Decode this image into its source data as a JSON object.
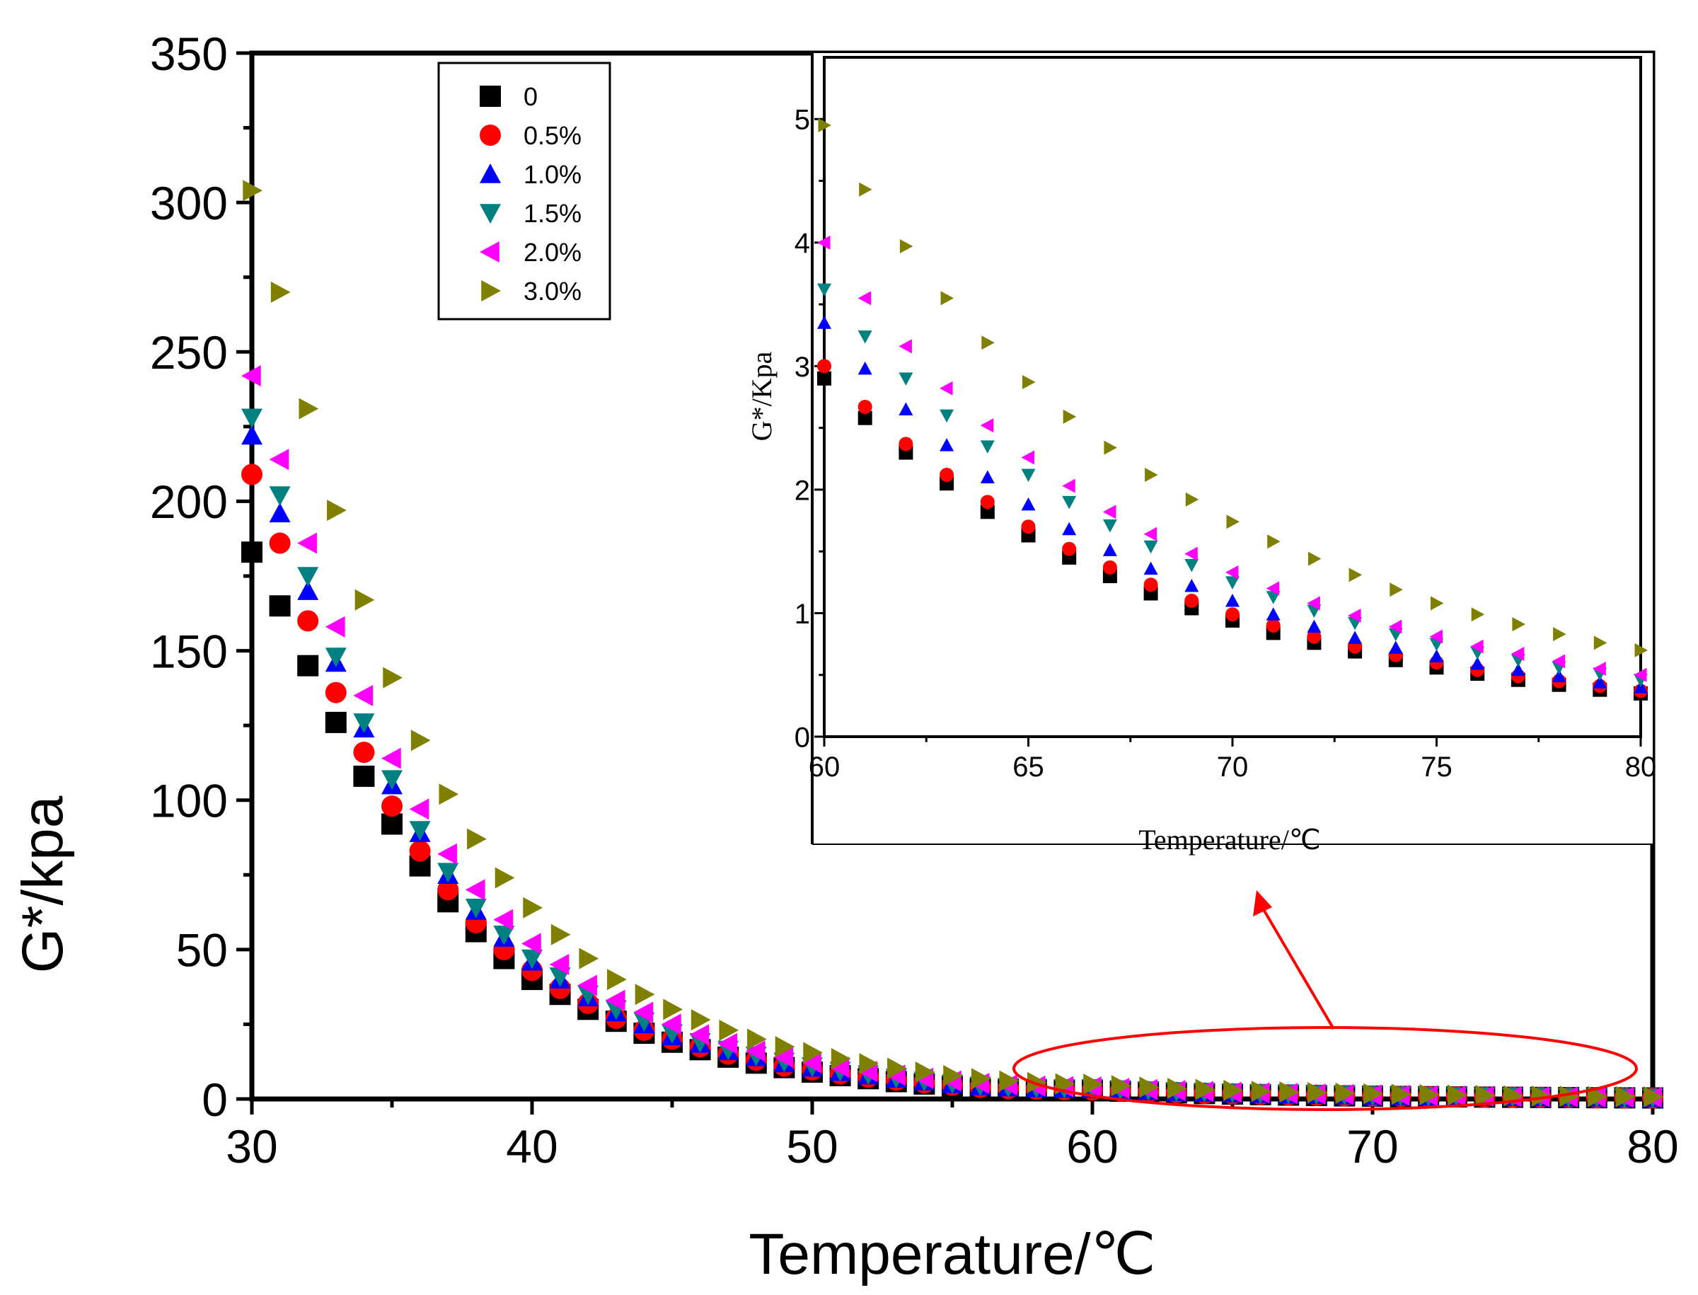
{
  "chart_data": [
    {
      "id": "main",
      "type": "scatter",
      "title": "",
      "xlabel": "Temperature/℃",
      "ylabel": "G*/kpa",
      "xlim": [
        30,
        80
      ],
      "ylim": [
        0,
        350
      ],
      "xticks": [
        "30",
        "40",
        "50",
        "60",
        "70",
        "80"
      ],
      "yticks": [
        "0",
        "50",
        "100",
        "150",
        "200",
        "250",
        "300",
        "350"
      ],
      "legend": {
        "position": "top-left",
        "entries": [
          {
            "label": "0",
            "marker": "square",
            "color": "#000000"
          },
          {
            "label": "0.5%",
            "marker": "circle",
            "color": "#ff0000"
          },
          {
            "label": "1.0%",
            "marker": "triangle-up",
            "color": "#0000ff"
          },
          {
            "label": "1.5%",
            "marker": "triangle-down",
            "color": "#008080"
          },
          {
            "label": "2.0%",
            "marker": "triangle-left",
            "color": "#ff00ff"
          },
          {
            "label": "3.0%",
            "marker": "triangle-right",
            "color": "#808000"
          }
        ]
      },
      "x": [
        30,
        31,
        32,
        33,
        34,
        35,
        36,
        37,
        38,
        39,
        40,
        41,
        42,
        43,
        44,
        45,
        46,
        47,
        48,
        49,
        50,
        51,
        52,
        53,
        54,
        55,
        56,
        57,
        58,
        59,
        60,
        61,
        62,
        63,
        64,
        65,
        66,
        67,
        68,
        69,
        70,
        71,
        72,
        73,
        74,
        75,
        76,
        77,
        78,
        79,
        80
      ],
      "series": [
        {
          "name": "0",
          "marker": "square",
          "color": "#000000",
          "values": [
            183,
            165,
            145,
            126,
            108,
            92,
            78,
            66,
            56,
            47,
            40,
            35,
            30,
            26,
            22,
            19,
            16.5,
            14,
            12,
            10.5,
            9,
            7.8,
            6.8,
            5.8,
            5,
            4.2,
            3.5,
            3.2,
            3.1,
            2.9,
            2.9,
            2.6,
            2.3,
            2.05,
            1.82,
            1.63,
            1.45,
            1.3,
            1.16,
            1.04,
            0.94,
            0.84,
            0.76,
            0.69,
            0.62,
            0.56,
            0.51,
            0.46,
            0.42,
            0.38,
            0.35
          ]
        },
        {
          "name": "0.5%",
          "marker": "circle",
          "color": "#ff0000",
          "values": [
            209,
            186,
            160,
            136,
            116,
            98,
            83,
            70,
            59,
            50,
            43,
            37,
            32,
            27,
            23,
            20,
            17.5,
            15,
            13,
            11,
            9.7,
            8.4,
            7.3,
            6.3,
            5.4,
            4.6,
            3.9,
            3.5,
            3.3,
            3.1,
            3.0,
            2.67,
            2.37,
            2.12,
            1.9,
            1.7,
            1.52,
            1.37,
            1.23,
            1.1,
            0.99,
            0.9,
            0.81,
            0.73,
            0.66,
            0.6,
            0.54,
            0.49,
            0.45,
            0.41,
            0.37
          ]
        },
        {
          "name": "1.0%",
          "marker": "triangle-up",
          "color": "#0000ff",
          "values": [
            222,
            196,
            170,
            146,
            124,
            105,
            89,
            75,
            63,
            54,
            46,
            40,
            34,
            29,
            25,
            21,
            18.5,
            16,
            14,
            12,
            10.5,
            9.1,
            7.9,
            6.8,
            5.9,
            5,
            4.3,
            3.9,
            3.6,
            3.4,
            3.35,
            2.98,
            2.65,
            2.36,
            2.1,
            1.88,
            1.68,
            1.51,
            1.36,
            1.22,
            1.1,
            0.99,
            0.89,
            0.8,
            0.72,
            0.65,
            0.59,
            0.54,
            0.49,
            0.44,
            0.4
          ]
        },
        {
          "name": "1.5%",
          "marker": "triangle-down",
          "color": "#008080",
          "values": [
            228,
            202,
            175,
            148,
            126,
            107,
            90,
            76,
            64,
            55,
            47,
            41,
            35,
            30,
            26,
            22,
            19,
            16.5,
            14.5,
            12.5,
            10.9,
            9.4,
            8.2,
            7.1,
            6.1,
            5.2,
            4.5,
            4,
            3.8,
            3.65,
            3.62,
            3.24,
            2.9,
            2.6,
            2.35,
            2.12,
            1.9,
            1.71,
            1.54,
            1.39,
            1.25,
            1.13,
            1.02,
            0.92,
            0.83,
            0.75,
            0.68,
            0.62,
            0.56,
            0.51,
            0.46
          ]
        },
        {
          "name": "2.0%",
          "marker": "triangle-left",
          "color": "#ff00ff",
          "values": [
            242,
            214,
            186,
            158,
            135,
            114,
            97,
            82,
            70,
            60,
            52,
            45,
            38,
            33,
            29,
            25,
            21.5,
            18.5,
            16,
            14,
            12.2,
            10.6,
            9.2,
            8,
            6.9,
            6,
            5.2,
            4.7,
            4.3,
            4.1,
            4.0,
            3.55,
            3.16,
            2.82,
            2.52,
            2.26,
            2.03,
            1.82,
            1.64,
            1.48,
            1.33,
            1.2,
            1.08,
            0.98,
            0.89,
            0.81,
            0.73,
            0.67,
            0.61,
            0.55,
            0.5
          ]
        },
        {
          "name": "3.0%",
          "marker": "triangle-right",
          "color": "#808000",
          "values": [
            304,
            270,
            231,
            197,
            167,
            141,
            120,
            102,
            87,
            74,
            64,
            55,
            47,
            40,
            35,
            30,
            26.5,
            23,
            20,
            17.5,
            15.5,
            13.5,
            11.8,
            10.3,
            9,
            7.8,
            6.8,
            6,
            5.5,
            5.1,
            4.95,
            4.43,
            3.97,
            3.55,
            3.19,
            2.87,
            2.59,
            2.34,
            2.12,
            1.92,
            1.74,
            1.58,
            1.44,
            1.31,
            1.19,
            1.08,
            0.99,
            0.91,
            0.83,
            0.76,
            0.7
          ]
        }
      ]
    },
    {
      "id": "inset",
      "type": "scatter",
      "title": "",
      "xlabel": "Temperature/℃",
      "ylabel": "G*/Kpa",
      "xlim": [
        60,
        80
      ],
      "ylim": [
        0,
        5.5
      ],
      "xticks": [
        "60",
        "65",
        "70",
        "75",
        "80"
      ],
      "yticks": [
        "0",
        "1",
        "2",
        "3",
        "4",
        "5"
      ],
      "x": [
        60,
        61,
        62,
        63,
        64,
        65,
        66,
        67,
        68,
        69,
        70,
        71,
        72,
        73,
        74,
        75,
        76,
        77,
        78,
        79,
        80
      ],
      "series": [
        {
          "name": "0",
          "marker": "square",
          "color": "#000000",
          "values": [
            2.9,
            2.58,
            2.3,
            2.05,
            1.82,
            1.63,
            1.45,
            1.3,
            1.16,
            1.04,
            0.94,
            0.84,
            0.76,
            0.69,
            0.62,
            0.56,
            0.51,
            0.46,
            0.42,
            0.38,
            0.35
          ]
        },
        {
          "name": "0.5%",
          "marker": "circle",
          "color": "#ff0000",
          "values": [
            3.0,
            2.67,
            2.37,
            2.12,
            1.9,
            1.7,
            1.52,
            1.37,
            1.23,
            1.1,
            0.99,
            0.9,
            0.81,
            0.73,
            0.66,
            0.6,
            0.54,
            0.49,
            0.45,
            0.41,
            0.37
          ]
        },
        {
          "name": "1.0%",
          "marker": "triangle-up",
          "color": "#0000ff",
          "values": [
            3.35,
            2.98,
            2.65,
            2.36,
            2.1,
            1.88,
            1.68,
            1.51,
            1.36,
            1.22,
            1.1,
            0.99,
            0.89,
            0.8,
            0.72,
            0.65,
            0.59,
            0.54,
            0.49,
            0.44,
            0.4
          ]
        },
        {
          "name": "1.5%",
          "marker": "triangle-down",
          "color": "#008080",
          "values": [
            3.62,
            3.24,
            2.9,
            2.6,
            2.35,
            2.12,
            1.9,
            1.71,
            1.54,
            1.39,
            1.25,
            1.13,
            1.02,
            0.92,
            0.83,
            0.75,
            0.68,
            0.62,
            0.56,
            0.51,
            0.46
          ]
        },
        {
          "name": "2.0%",
          "marker": "triangle-left",
          "color": "#ff00ff",
          "values": [
            4.0,
            3.55,
            3.16,
            2.82,
            2.52,
            2.26,
            2.03,
            1.82,
            1.64,
            1.48,
            1.33,
            1.2,
            1.08,
            0.98,
            0.89,
            0.81,
            0.73,
            0.67,
            0.61,
            0.55,
            0.5
          ]
        },
        {
          "name": "3.0%",
          "marker": "triangle-right",
          "color": "#808000",
          "values": [
            4.95,
            4.43,
            3.97,
            3.55,
            3.19,
            2.87,
            2.59,
            2.34,
            2.12,
            1.92,
            1.74,
            1.58,
            1.44,
            1.31,
            1.19,
            1.08,
            0.99,
            0.91,
            0.83,
            0.76,
            0.7
          ]
        }
      ]
    }
  ],
  "annotation": {
    "shape": "ellipse",
    "color": "#ff0000",
    "arrow": true
  }
}
